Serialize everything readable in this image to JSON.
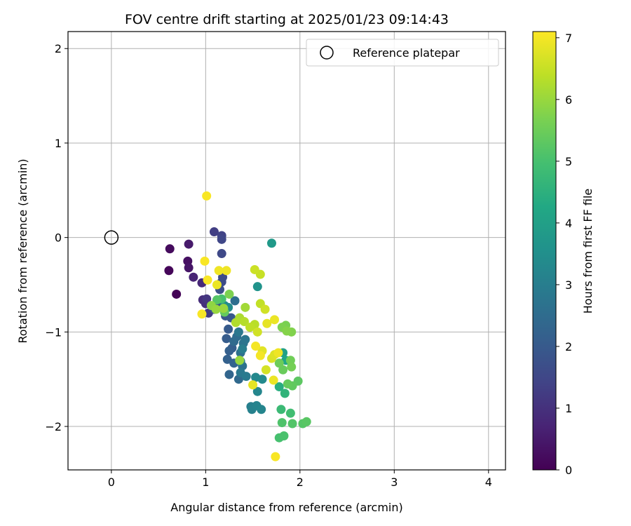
{
  "chart_data": {
    "type": "scatter",
    "title": "FOV centre drift starting at 2025/01/23 09:14:43",
    "xlabel": "Angular distance from reference (arcmin)",
    "ylabel": "Rotation from reference (arcmin)",
    "xlim": [
      -0.46,
      4.18
    ],
    "ylim": [
      -2.46,
      2.18
    ],
    "xticks": [
      0,
      1,
      2,
      3,
      4
    ],
    "yticks": [
      -2,
      -1,
      0,
      1,
      2
    ],
    "grid": true,
    "legend": {
      "placement": "upper-right",
      "entries": [
        "Reference platepar"
      ]
    },
    "reference_point": {
      "x": 0,
      "y": 0,
      "label": "Reference platepar"
    },
    "colorbar": {
      "label": "Hours from first FF file",
      "colormap": "viridis",
      "range": [
        0,
        7.1
      ],
      "ticks": [
        0,
        1,
        2,
        3,
        4,
        5,
        6,
        7
      ]
    },
    "series": [
      {
        "points": [
          {
            "x": 0.69,
            "y": -0.6,
            "c": 0.05
          },
          {
            "x": 0.61,
            "y": -0.35,
            "c": 0.1
          },
          {
            "x": 0.62,
            "y": -0.12,
            "c": 0.2
          },
          {
            "x": 0.81,
            "y": -0.25,
            "c": 0.3
          },
          {
            "x": 0.82,
            "y": -0.32,
            "c": 0.4
          },
          {
            "x": 0.82,
            "y": -0.07,
            "c": 0.5
          },
          {
            "x": 0.87,
            "y": -0.42,
            "c": 0.7
          },
          {
            "x": 0.96,
            "y": -0.48,
            "c": 0.8
          },
          {
            "x": 0.97,
            "y": -0.66,
            "c": 0.9
          },
          {
            "x": 1.0,
            "y": -0.7,
            "c": 1.0
          },
          {
            "x": 1.01,
            "y": -0.65,
            "c": 1.1
          },
          {
            "x": 1.03,
            "y": -0.8,
            "c": 1.2
          },
          {
            "x": 1.09,
            "y": 0.06,
            "c": 1.3
          },
          {
            "x": 1.17,
            "y": 0.02,
            "c": 1.4
          },
          {
            "x": 1.17,
            "y": -0.02,
            "c": 1.5
          },
          {
            "x": 1.17,
            "y": -0.17,
            "c": 1.55
          },
          {
            "x": 1.18,
            "y": -0.42,
            "c": 1.6
          },
          {
            "x": 1.17,
            "y": -0.47,
            "c": 1.65
          },
          {
            "x": 1.15,
            "y": -0.55,
            "c": 1.7
          },
          {
            "x": 1.13,
            "y": -0.7,
            "c": 1.75
          },
          {
            "x": 1.09,
            "y": -0.76,
            "c": 1.8
          },
          {
            "x": 1.21,
            "y": -0.83,
            "c": 1.9
          },
          {
            "x": 1.27,
            "y": -0.85,
            "c": 1.95
          },
          {
            "x": 1.24,
            "y": -0.97,
            "c": 2.0
          },
          {
            "x": 1.22,
            "y": -1.07,
            "c": 2.05
          },
          {
            "x": 1.28,
            "y": -1.17,
            "c": 2.1
          },
          {
            "x": 1.25,
            "y": -1.2,
            "c": 2.15
          },
          {
            "x": 1.23,
            "y": -1.29,
            "c": 2.2
          },
          {
            "x": 1.3,
            "y": -1.33,
            "c": 2.25
          },
          {
            "x": 1.25,
            "y": -1.45,
            "c": 2.3
          },
          {
            "x": 1.35,
            "y": -1.5,
            "c": 2.4
          },
          {
            "x": 1.3,
            "y": -1.1,
            "c": 2.45
          },
          {
            "x": 1.33,
            "y": -1.05,
            "c": 2.5
          },
          {
            "x": 1.31,
            "y": -0.67,
            "c": 2.55
          },
          {
            "x": 1.37,
            "y": -1.22,
            "c": 2.6
          },
          {
            "x": 1.39,
            "y": -1.36,
            "c": 2.65
          },
          {
            "x": 1.4,
            "y": -1.12,
            "c": 2.7
          },
          {
            "x": 1.42,
            "y": -1.08,
            "c": 2.75
          },
          {
            "x": 1.35,
            "y": -1.0,
            "c": 2.8
          },
          {
            "x": 1.37,
            "y": -1.43,
            "c": 2.85
          },
          {
            "x": 1.43,
            "y": -1.47,
            "c": 2.9
          },
          {
            "x": 1.37,
            "y": -1.31,
            "c": 2.95
          },
          {
            "x": 1.39,
            "y": -1.18,
            "c": 3.0
          },
          {
            "x": 1.48,
            "y": -1.79,
            "c": 3.05
          },
          {
            "x": 1.49,
            "y": -1.82,
            "c": 3.1
          },
          {
            "x": 1.54,
            "y": -1.78,
            "c": 3.15
          },
          {
            "x": 1.59,
            "y": -1.82,
            "c": 3.2
          },
          {
            "x": 1.55,
            "y": -1.63,
            "c": 3.25
          },
          {
            "x": 1.53,
            "y": -1.48,
            "c": 3.3
          },
          {
            "x": 1.6,
            "y": -1.5,
            "c": 3.35
          },
          {
            "x": 1.24,
            "y": -0.74,
            "c": 3.4
          },
          {
            "x": 1.2,
            "y": -0.72,
            "c": 3.45
          },
          {
            "x": 1.55,
            "y": -0.52,
            "c": 3.6
          },
          {
            "x": 1.7,
            "y": -0.06,
            "c": 3.8
          },
          {
            "x": 1.82,
            "y": -1.22,
            "c": 4.0
          },
          {
            "x": 1.85,
            "y": -1.3,
            "c": 4.2
          },
          {
            "x": 1.78,
            "y": -1.58,
            "c": 4.4
          },
          {
            "x": 1.84,
            "y": -1.65,
            "c": 4.6
          },
          {
            "x": 1.8,
            "y": -1.82,
            "c": 4.8
          },
          {
            "x": 1.9,
            "y": -1.86,
            "c": 4.9
          },
          {
            "x": 1.78,
            "y": -2.12,
            "c": 5.0
          },
          {
            "x": 1.83,
            "y": -2.1,
            "c": 5.05
          },
          {
            "x": 1.81,
            "y": -1.96,
            "c": 5.1
          },
          {
            "x": 1.92,
            "y": -1.97,
            "c": 5.15
          },
          {
            "x": 2.03,
            "y": -1.97,
            "c": 5.2
          },
          {
            "x": 2.07,
            "y": -1.95,
            "c": 5.25
          },
          {
            "x": 1.98,
            "y": -1.52,
            "c": 5.3
          },
          {
            "x": 1.92,
            "y": -1.57,
            "c": 5.35
          },
          {
            "x": 1.87,
            "y": -1.55,
            "c": 5.4
          },
          {
            "x": 1.82,
            "y": -1.4,
            "c": 5.45
          },
          {
            "x": 1.78,
            "y": -1.33,
            "c": 5.5
          },
          {
            "x": 1.9,
            "y": -1.3,
            "c": 5.55
          },
          {
            "x": 1.91,
            "y": -1.37,
            "c": 5.6
          },
          {
            "x": 1.85,
            "y": -0.93,
            "c": 5.65
          },
          {
            "x": 1.81,
            "y": -0.95,
            "c": 5.7
          },
          {
            "x": 1.91,
            "y": -1.0,
            "c": 5.75
          },
          {
            "x": 1.86,
            "y": -0.99,
            "c": 5.8
          },
          {
            "x": 1.17,
            "y": -0.65,
            "c": 5.0
          },
          {
            "x": 1.12,
            "y": -0.66,
            "c": 5.2
          },
          {
            "x": 1.2,
            "y": -0.79,
            "c": 5.4
          },
          {
            "x": 1.25,
            "y": -0.6,
            "c": 5.7
          },
          {
            "x": 1.06,
            "y": -0.72,
            "c": 5.9
          },
          {
            "x": 1.11,
            "y": -0.76,
            "c": 6.0
          },
          {
            "x": 1.19,
            "y": -0.75,
            "c": 6.0
          },
          {
            "x": 1.36,
            "y": -1.3,
            "c": 6.0
          },
          {
            "x": 1.42,
            "y": -0.74,
            "c": 6.1
          },
          {
            "x": 1.36,
            "y": -0.85,
            "c": 6.2
          },
          {
            "x": 1.32,
            "y": -0.9,
            "c": 6.25
          },
          {
            "x": 1.41,
            "y": -0.89,
            "c": 6.3
          },
          {
            "x": 1.52,
            "y": -0.92,
            "c": 6.35
          },
          {
            "x": 1.47,
            "y": -0.95,
            "c": 6.4
          },
          {
            "x": 1.58,
            "y": -0.7,
            "c": 6.45
          },
          {
            "x": 1.58,
            "y": -0.39,
            "c": 6.5
          },
          {
            "x": 1.52,
            "y": -0.34,
            "c": 6.55
          },
          {
            "x": 1.63,
            "y": -0.76,
            "c": 6.6
          },
          {
            "x": 1.55,
            "y": -1.0,
            "c": 6.6
          },
          {
            "x": 1.64,
            "y": -1.4,
            "c": 6.65
          },
          {
            "x": 1.7,
            "y": -1.28,
            "c": 6.7
          },
          {
            "x": 1.73,
            "y": -1.24,
            "c": 6.75
          },
          {
            "x": 1.6,
            "y": -1.2,
            "c": 6.8
          },
          {
            "x": 1.5,
            "y": -1.56,
            "c": 6.85
          },
          {
            "x": 1.72,
            "y": -1.51,
            "c": 6.9
          },
          {
            "x": 1.77,
            "y": -1.22,
            "c": 6.95
          },
          {
            "x": 1.58,
            "y": -1.25,
            "c": 7.0
          },
          {
            "x": 1.53,
            "y": -1.15,
            "c": 7.0
          },
          {
            "x": 1.74,
            "y": -2.32,
            "c": 7.05
          },
          {
            "x": 1.01,
            "y": 0.44,
            "c": 7.05
          },
          {
            "x": 0.99,
            "y": -0.25,
            "c": 7.05
          },
          {
            "x": 1.02,
            "y": -0.45,
            "c": 7.05
          },
          {
            "x": 0.96,
            "y": -0.81,
            "c": 7.05
          },
          {
            "x": 1.14,
            "y": -0.35,
            "c": 6.95
          },
          {
            "x": 1.22,
            "y": -0.35,
            "c": 6.95
          },
          {
            "x": 1.12,
            "y": -0.5,
            "c": 6.9
          },
          {
            "x": 1.65,
            "y": -0.91,
            "c": 6.85
          },
          {
            "x": 1.73,
            "y": -0.87,
            "c": 6.9
          }
        ]
      }
    ]
  }
}
